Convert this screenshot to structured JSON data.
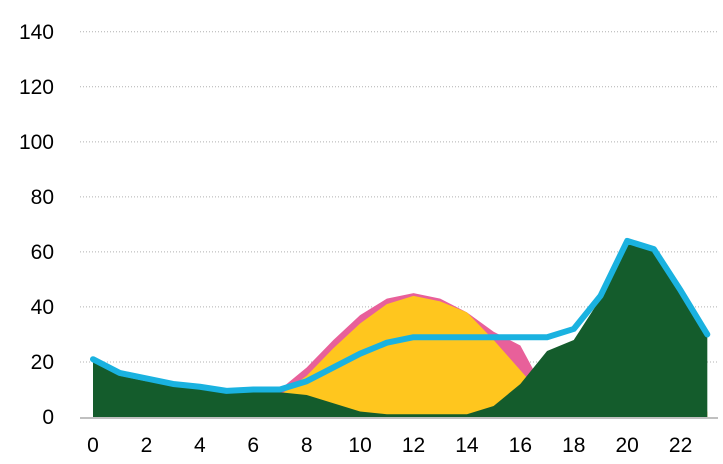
{
  "chart_data": {
    "type": "area",
    "title": "",
    "xlabel": "",
    "ylabel": "",
    "x": [
      0,
      1,
      2,
      3,
      4,
      5,
      6,
      7,
      8,
      9,
      10,
      11,
      12,
      13,
      14,
      15,
      16,
      17,
      18,
      19,
      20,
      21,
      22,
      23
    ],
    "x_ticks": [
      "0",
      "2",
      "4",
      "6",
      "8",
      "10",
      "12",
      "14",
      "16",
      "18",
      "20",
      "22"
    ],
    "y_ticks": [
      "0",
      "20",
      "40",
      "60",
      "80",
      "100",
      "120",
      "140"
    ],
    "ylim": [
      0,
      145
    ],
    "grid": "horizontal dotted",
    "legend": "none",
    "series": [
      {
        "kind": "area",
        "color": "#e8609a",
        "values": [
          0,
          3,
          2,
          1,
          0,
          0,
          0,
          10,
          18,
          28,
          37,
          43,
          45,
          43,
          38,
          31,
          26,
          8,
          4,
          1,
          0,
          0,
          0,
          2
        ]
      },
      {
        "kind": "area",
        "color": "#ffc61e",
        "values": [
          0,
          0,
          0,
          0,
          0,
          0,
          0,
          8,
          15,
          25,
          34,
          41,
          44,
          42,
          38,
          28,
          17,
          6,
          4,
          1,
          0,
          0,
          0,
          2
        ]
      },
      {
        "kind": "area",
        "color": "#145c2c",
        "values": [
          20,
          15,
          13,
          12,
          11,
          9,
          9,
          9,
          8,
          5,
          2,
          1,
          1,
          1,
          1,
          4,
          12,
          24,
          28,
          43,
          64,
          61,
          46,
          29
        ]
      },
      {
        "kind": "line",
        "color": "#1ab2e0",
        "values": [
          21,
          16,
          14,
          12,
          11,
          9.5,
          10,
          10,
          13,
          18,
          23,
          27,
          29,
          29,
          29,
          29,
          29,
          29,
          32,
          44,
          64,
          61,
          46,
          30
        ]
      }
    ]
  }
}
